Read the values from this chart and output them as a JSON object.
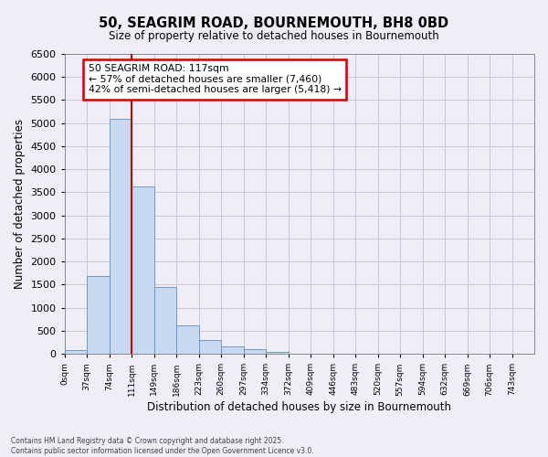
{
  "title_line1": "50, SEAGRIM ROAD, BOURNEMOUTH, BH8 0BD",
  "title_line2": "Size of property relative to detached houses in Bournemouth",
  "xlabel": "Distribution of detached houses by size in Bournemouth",
  "ylabel": "Number of detached properties",
  "footer_line1": "Contains HM Land Registry data © Crown copyright and database right 2025.",
  "footer_line2": "Contains public sector information licensed under the Open Government Licence v3.0.",
  "bins": [
    0,
    37,
    74,
    111,
    148,
    185,
    222,
    259,
    296,
    333,
    370,
    407,
    444,
    481,
    518,
    555,
    592,
    629,
    666,
    703,
    740,
    777
  ],
  "bin_labels": [
    "0sqm",
    "37sqm",
    "74sqm",
    "111sqm",
    "149sqm",
    "186sqm",
    "223sqm",
    "260sqm",
    "297sqm",
    "334sqm",
    "372sqm",
    "409sqm",
    "446sqm",
    "483sqm",
    "520sqm",
    "557sqm",
    "594sqm",
    "632sqm",
    "669sqm",
    "706sqm",
    "743sqm"
  ],
  "counts": [
    80,
    1680,
    5100,
    3620,
    1440,
    610,
    310,
    160,
    100,
    50,
    10,
    2,
    0,
    0,
    0,
    0,
    0,
    0,
    0,
    0,
    0
  ],
  "bar_color": "#c8d8ee",
  "bar_edge_color": "#6090c0",
  "vline_x": 111,
  "vline_color": "#cc0000",
  "annotation_text": "50 SEAGRIM ROAD: 117sqm\n← 57% of detached houses are smaller (7,460)\n42% of semi-detached houses are larger (5,418) →",
  "annotation_box_color": "white",
  "annotation_box_edge": "#cc0000",
  "ylim": [
    0,
    6500
  ],
  "yticks": [
    0,
    500,
    1000,
    1500,
    2000,
    2500,
    3000,
    3500,
    4000,
    4500,
    5000,
    5500,
    6000,
    6500
  ],
  "grid_color": "#c8c8d8",
  "background_color": "#eeeef8"
}
